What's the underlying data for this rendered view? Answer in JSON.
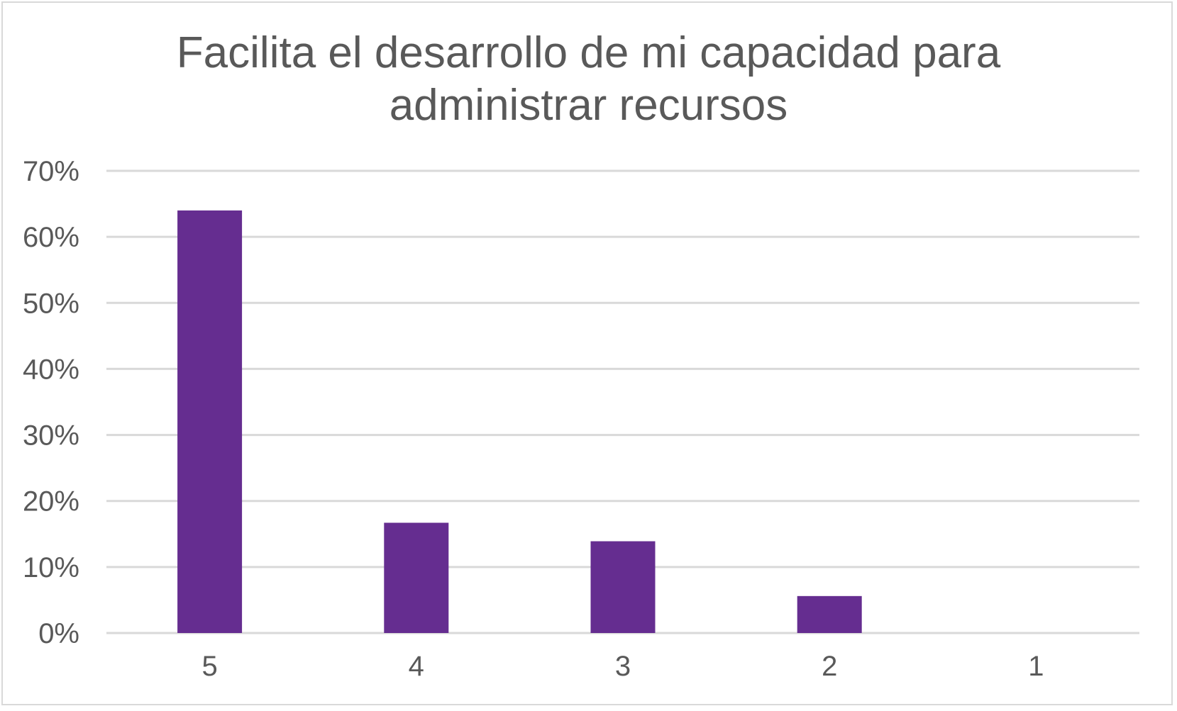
{
  "chart_data": {
    "type": "bar",
    "title_lines": [
      "Facilita el desarrollo de mi capacidad para",
      "administrar recursos"
    ],
    "categories": [
      "5",
      "4",
      "3",
      "2",
      "1"
    ],
    "values": [
      64,
      16.7,
      13.9,
      5.6,
      0
    ],
    "ylim": [
      0,
      70
    ],
    "y_ticks": [
      0,
      10,
      20,
      30,
      40,
      50,
      60,
      70
    ],
    "y_tick_labels": [
      "0%",
      "10%",
      "20%",
      "30%",
      "40%",
      "50%",
      "60%",
      "70%"
    ],
    "xlabel": "",
    "ylabel": "",
    "grid": true,
    "legend": "none",
    "bar_color": "#652d90",
    "grid_color": "#d9d9d9",
    "text_color": "#595959"
  }
}
